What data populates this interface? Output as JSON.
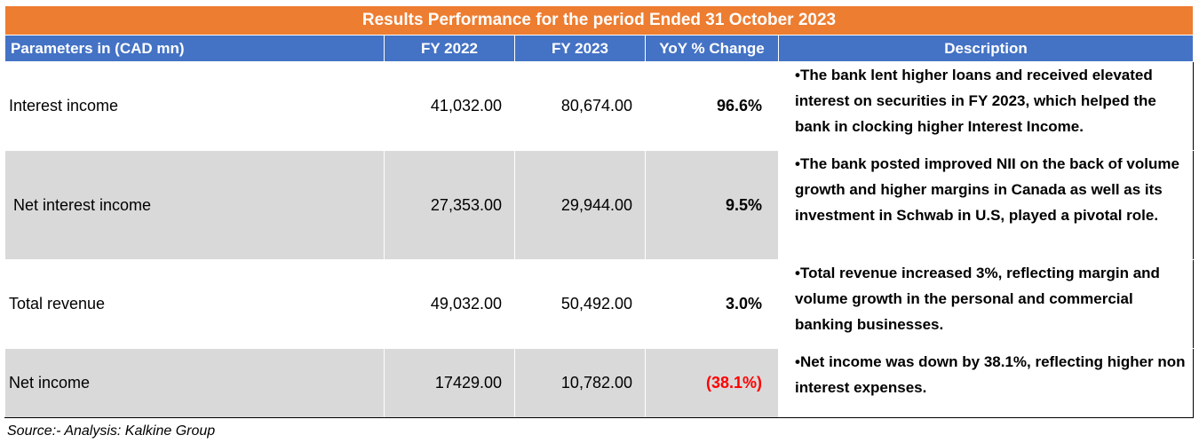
{
  "title": "Results Performance for the period Ended 31 October 2023",
  "headers": {
    "parameter": "Parameters in (CAD mn)",
    "fy2022": "FY 2022",
    "fy2023": "FY 2023",
    "yoy": "YoY % Change",
    "description": "Description"
  },
  "rows": [
    {
      "parameter": "Interest income",
      "fy2022": "41,032.00",
      "fy2023": "80,674.00",
      "yoy": "96.6%",
      "description": "•The bank lent higher loans and received elevated interest on securities in FY 2023, which helped the bank in clocking higher Interest Income."
    },
    {
      "parameter": " Net interest income",
      "fy2022": "27,353.00",
      "fy2023": "29,944.00",
      "yoy": "9.5%",
      "description": "•The bank posted improved NII on the back of volume growth and higher margins in Canada as well as its investment in Schwab in U.S, played a pivotal role."
    },
    {
      "parameter": "Total revenue",
      "fy2022": "49,032.00",
      "fy2023": "50,492.00",
      "yoy": "3.0%",
      "description": "•Total revenue increased 3%, reflecting margin and volume growth in the personal and commercial banking businesses."
    },
    {
      "parameter": "Net income",
      "fy2022": "17429.00",
      "fy2023": "10,782.00",
      "yoy": "(38.1%)",
      "description": "•Net income was down by 38.1%, reflecting higher non interest expenses."
    }
  ],
  "source": "Source:- Analysis: Kalkine Group",
  "colors": {
    "title_bg": "#ED7D31",
    "header_bg": "#4472C4",
    "row_shade": "#D9D9D9",
    "negative": "#FF0000"
  }
}
